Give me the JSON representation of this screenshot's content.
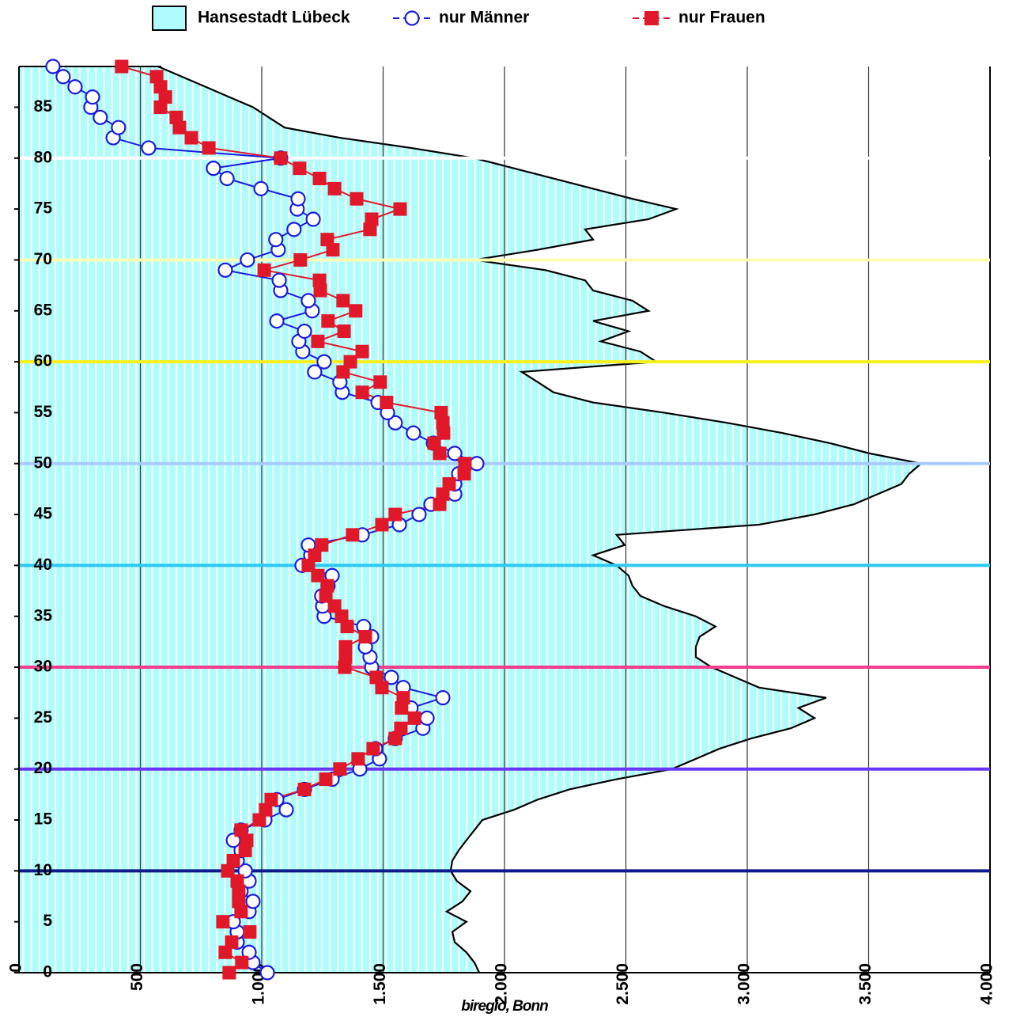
{
  "chart_data": {
    "type": "line",
    "source": "biregio, Bonn",
    "y": [
      0,
      1,
      2,
      3,
      4,
      5,
      6,
      7,
      8,
      9,
      10,
      11,
      12,
      13,
      14,
      15,
      16,
      17,
      18,
      19,
      20,
      21,
      22,
      23,
      24,
      25,
      26,
      27,
      28,
      29,
      30,
      31,
      32,
      33,
      34,
      35,
      36,
      37,
      38,
      39,
      40,
      41,
      42,
      43,
      44,
      45,
      46,
      47,
      48,
      49,
      50,
      51,
      52,
      53,
      54,
      55,
      56,
      57,
      58,
      59,
      60,
      61,
      62,
      63,
      64,
      65,
      66,
      67,
      68,
      69,
      70,
      71,
      72,
      73,
      74,
      75,
      76,
      77,
      78,
      79,
      80,
      81,
      82,
      83,
      84,
      85,
      86,
      87,
      88,
      89
    ],
    "ylim": [
      0,
      89
    ],
    "yticks": [
      0,
      5,
      10,
      15,
      20,
      25,
      30,
      35,
      40,
      45,
      50,
      55,
      60,
      65,
      70,
      75,
      80,
      85
    ],
    "xlim": [
      0,
      4000
    ],
    "xticks": [
      0,
      500,
      {
        "value": 1000,
        "label": "1.000"
      },
      {
        "value": 1500,
        "label": "1.500"
      },
      {
        "value": 2000,
        "label": "2.000"
      },
      {
        "value": 2500,
        "label": "2.500"
      },
      {
        "value": 3000,
        "label": "3.000"
      },
      {
        "value": 3500,
        "label": "3.500"
      },
      {
        "value": 4000,
        "label": "4.000"
      }
    ],
    "grid": true,
    "reference_lines": [
      {
        "value": 10,
        "color": "#0d1a8c"
      },
      {
        "value": 20,
        "color": "#6a35f5"
      },
      {
        "value": 30,
        "color": "#f23c8c"
      },
      {
        "value": 40,
        "color": "#2cc8f2"
      },
      {
        "value": 50,
        "color": "#a8cbff"
      },
      {
        "value": 60,
        "color": "#f5f01e"
      },
      {
        "value": 70,
        "color": "#ffffb4"
      },
      {
        "value": 80,
        "color": "#ffffff"
      }
    ],
    "series": [
      {
        "name": "Hansestadt Lübeck",
        "style": "area",
        "color": "#aefcfc",
        "values": [
          1896,
          1876,
          1843,
          1795,
          1785,
          1843,
          1762,
          1827,
          1860,
          1804,
          1778,
          1785,
          1811,
          1843,
          1876,
          1909,
          2039,
          2137,
          2267,
          2462,
          2690,
          2788,
          2886,
          3016,
          3179,
          3277,
          3211,
          3325,
          3049,
          2951,
          2853,
          2788,
          2788,
          2804,
          2869,
          2788,
          2658,
          2560,
          2527,
          2511,
          2462,
          2365,
          2495,
          2462,
          3049,
          3277,
          3439,
          3537,
          3635,
          3667,
          3716,
          3504,
          3342,
          3146,
          2918,
          2658,
          2365,
          2202,
          2137,
          2071,
          2625,
          2560,
          2397,
          2511,
          2365,
          2593,
          2527,
          2365,
          2332,
          2169,
          1876,
          2137,
          2365,
          2332,
          2593,
          2707,
          2527,
          2365,
          2202,
          2039,
          1876,
          1615,
          1322,
          1094,
          1029,
          964,
          866,
          769,
          671,
          573
        ]
      },
      {
        "name": "nur Männer",
        "style": "circle",
        "color": "#1a1adf",
        "values": [
          1023,
          964,
          948,
          899,
          899,
          883,
          948,
          964,
          915,
          948,
          932,
          899,
          915,
          883,
          915,
          1013,
          1101,
          1062,
          1176,
          1290,
          1404,
          1485,
          1469,
          1550,
          1664,
          1681,
          1615,
          1746,
          1583,
          1534,
          1453,
          1446,
          1427,
          1453,
          1420,
          1257,
          1251,
          1247,
          1273,
          1290,
          1166,
          1202,
          1192,
          1414,
          1567,
          1648,
          1697,
          1795,
          1795,
          1811,
          1886,
          1795,
          1707,
          1625,
          1550,
          1518,
          1479,
          1332,
          1322,
          1218,
          1257,
          1169,
          1153,
          1176,
          1062,
          1208,
          1192,
          1078,
          1072,
          850,
          941,
          1068,
          1058,
          1133,
          1212,
          1146,
          1150,
          997,
          857,
          801,
          1078,
          534,
          388,
          410,
          335,
          296,
          303,
          231,
          182,
          140
        ]
      },
      {
        "name": "nur Frauen",
        "style": "square",
        "color": "#e0182a",
        "values": [
          866,
          918,
          850,
          876,
          951,
          840,
          915,
          905,
          905,
          899,
          860,
          883,
          932,
          938,
          915,
          990,
          1016,
          1039,
          1176,
          1264,
          1322,
          1397,
          1459,
          1550,
          1573,
          1629,
          1576,
          1583,
          1495,
          1472,
          1342,
          1345,
          1345,
          1427,
          1352,
          1329,
          1300,
          1264,
          1270,
          1231,
          1192,
          1218,
          1247,
          1374,
          1495,
          1550,
          1733,
          1746,
          1772,
          1834,
          1837,
          1733,
          1710,
          1749,
          1746,
          1739,
          1514,
          1414,
          1488,
          1335,
          1365,
          1414,
          1231,
          1339,
          1273,
          1387,
          1335,
          1241,
          1238,
          1010,
          1159,
          1293,
          1270,
          1446,
          1453,
          1570,
          1391,
          1300,
          1238,
          1156,
          1078,
          782,
          710,
          661,
          648,
          583,
          603,
          583,
          567,
          423
        ]
      }
    ]
  }
}
